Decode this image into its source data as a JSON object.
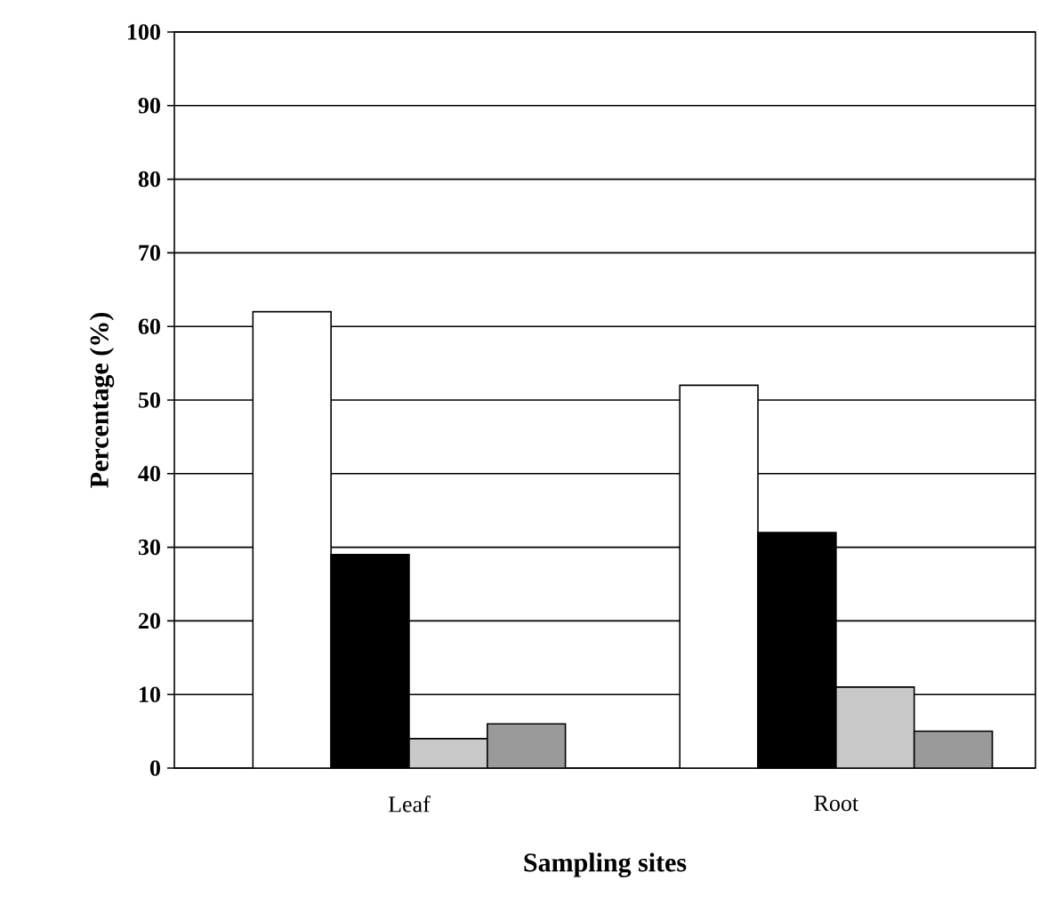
{
  "chart_data": {
    "type": "bar",
    "xlabel": "Sampling sites",
    "ylabel": "Percentage (%)",
    "categories": [
      "Leaf",
      "Root"
    ],
    "series": [
      {
        "color": "#ffffff",
        "values": [
          62,
          52
        ]
      },
      {
        "color": "#000000",
        "values": [
          29,
          32
        ]
      },
      {
        "color": "#c8c8c8",
        "values": [
          4,
          11
        ]
      },
      {
        "color": "#9a9a9a",
        "values": [
          6,
          5
        ]
      }
    ],
    "ylim": [
      0,
      100
    ],
    "yticks": [
      0,
      10,
      20,
      30,
      40,
      50,
      60,
      70,
      80,
      90,
      100
    ],
    "grid": "y"
  }
}
